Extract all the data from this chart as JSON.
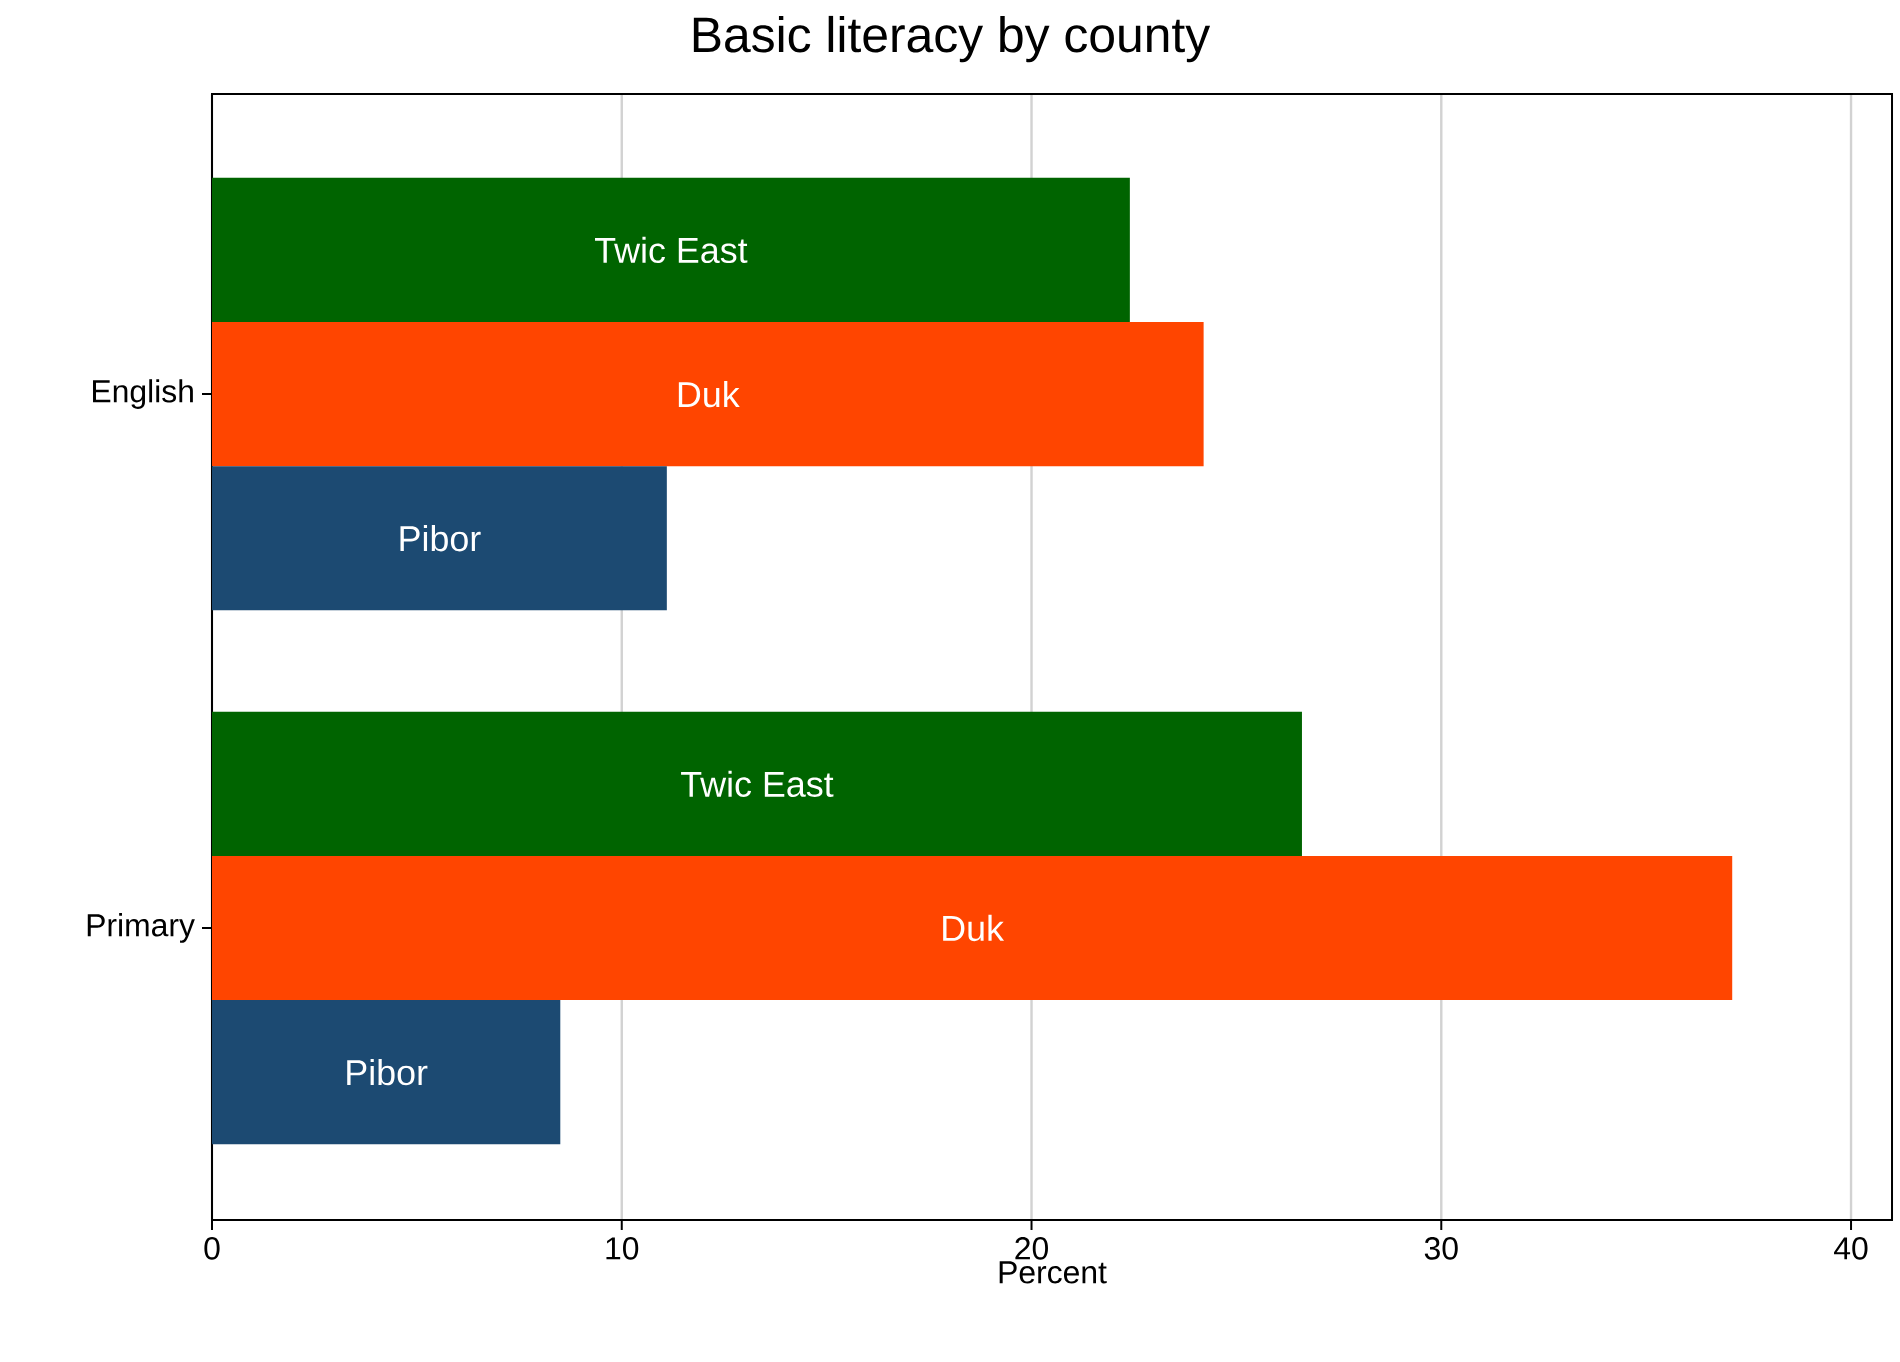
{
  "chart_data": {
    "type": "bar",
    "orientation": "horizontal",
    "title": "Basic literacy by county",
    "xlabel": "Percent",
    "categories": [
      "English",
      "Primary"
    ],
    "series": [
      {
        "name": "Twic East",
        "color": "#006400",
        "values": [
          22.4,
          26.6
        ]
      },
      {
        "name": "Duk",
        "color": "#ff4500",
        "values": [
          24.2,
          37.1
        ]
      },
      {
        "name": "Pibor",
        "color": "#1c4a72",
        "values": [
          11.1,
          8.5
        ]
      }
    ],
    "xlim": [
      0,
      41
    ],
    "xticks": [
      0,
      10,
      20,
      30,
      40
    ],
    "grid": "x"
  }
}
